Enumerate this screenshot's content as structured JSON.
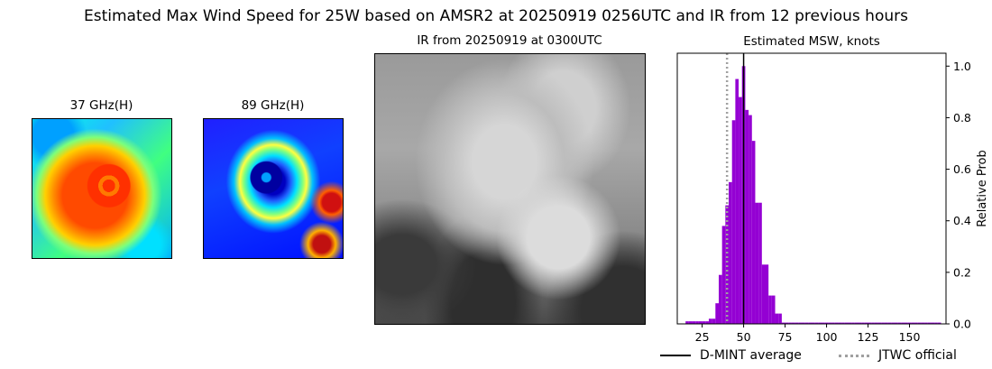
{
  "figure": {
    "suptitle": "Estimated Max Wind Speed for 25W based on AMSR2 at 20250919 0256UTC and IR from 12 previous hours"
  },
  "panels": {
    "p37": {
      "title": "37 GHz(H)"
    },
    "p89": {
      "title": "89 GHz(H)"
    },
    "ir": {
      "title": "IR from 20250919 at 0300UTC"
    }
  },
  "colors": {
    "bars": "#9400d3",
    "dmint_line": "#000000",
    "jtwc_line": "#a0a0a0",
    "microwave_low": "#0000ff",
    "microwave_high": "#ff4500"
  },
  "chart_data": {
    "type": "bar",
    "title": "Estimated MSW, knots",
    "xlabel": "",
    "ylabel": "Relative Prob",
    "xlim": [
      10,
      172
    ],
    "ylim": [
      0,
      1.05
    ],
    "xticks": [
      25,
      50,
      75,
      100,
      125,
      150
    ],
    "yticks": [
      0.0,
      0.2,
      0.4,
      0.6,
      0.8,
      1.0
    ],
    "y_axis_side": "right",
    "grid": false,
    "bin_width": 2,
    "bins": [
      {
        "x0": 15,
        "y": 0.01
      },
      {
        "x0": 17,
        "y": 0.01
      },
      {
        "x0": 19,
        "y": 0.01
      },
      {
        "x0": 21,
        "y": 0.01
      },
      {
        "x0": 23,
        "y": 0.01
      },
      {
        "x0": 25,
        "y": 0.01
      },
      {
        "x0": 27,
        "y": 0.01
      },
      {
        "x0": 29,
        "y": 0.02
      },
      {
        "x0": 31,
        "y": 0.02
      },
      {
        "x0": 33,
        "y": 0.08
      },
      {
        "x0": 35,
        "y": 0.19
      },
      {
        "x0": 37,
        "y": 0.38
      },
      {
        "x0": 39,
        "y": 0.46
      },
      {
        "x0": 41,
        "y": 0.55
      },
      {
        "x0": 43,
        "y": 0.79
      },
      {
        "x0": 45,
        "y": 0.95
      },
      {
        "x0": 47,
        "y": 0.88
      },
      {
        "x0": 49,
        "y": 1.0
      },
      {
        "x0": 51,
        "y": 0.83
      },
      {
        "x0": 53,
        "y": 0.81
      },
      {
        "x0": 55,
        "y": 0.71
      },
      {
        "x0": 57,
        "y": 0.47
      },
      {
        "x0": 59,
        "y": 0.47
      },
      {
        "x0": 61,
        "y": 0.23
      },
      {
        "x0": 63,
        "y": 0.23
      },
      {
        "x0": 65,
        "y": 0.11
      },
      {
        "x0": 67,
        "y": 0.11
      },
      {
        "x0": 69,
        "y": 0.04
      },
      {
        "x0": 71,
        "y": 0.04
      },
      {
        "x0": 73,
        "y": 0.005
      },
      {
        "x0": 75,
        "y": 0.005
      },
      {
        "x0": 77,
        "y": 0.005
      },
      {
        "x0": 79,
        "y": 0.005
      },
      {
        "x0": 81,
        "y": 0.005
      },
      {
        "x0": 83,
        "y": 0.005
      },
      {
        "x0": 85,
        "y": 0.005
      },
      {
        "x0": 87,
        "y": 0.005
      },
      {
        "x0": 89,
        "y": 0.005
      },
      {
        "x0": 91,
        "y": 0.005
      },
      {
        "x0": 93,
        "y": 0.005
      },
      {
        "x0": 95,
        "y": 0.005
      },
      {
        "x0": 97,
        "y": 0.005
      },
      {
        "x0": 99,
        "y": 0.005
      },
      {
        "x0": 101,
        "y": 0.005
      },
      {
        "x0": 103,
        "y": 0.005
      },
      {
        "x0": 105,
        "y": 0.005
      },
      {
        "x0": 107,
        "y": 0.005
      },
      {
        "x0": 109,
        "y": 0.005
      },
      {
        "x0": 111,
        "y": 0.005
      },
      {
        "x0": 113,
        "y": 0.005
      },
      {
        "x0": 115,
        "y": 0.005
      },
      {
        "x0": 117,
        "y": 0.005
      },
      {
        "x0": 119,
        "y": 0.005
      },
      {
        "x0": 121,
        "y": 0.005
      },
      {
        "x0": 123,
        "y": 0.005
      },
      {
        "x0": 125,
        "y": 0.005
      },
      {
        "x0": 127,
        "y": 0.005
      },
      {
        "x0": 129,
        "y": 0.005
      },
      {
        "x0": 131,
        "y": 0.005
      },
      {
        "x0": 133,
        "y": 0.005
      },
      {
        "x0": 135,
        "y": 0.005
      },
      {
        "x0": 137,
        "y": 0.005
      },
      {
        "x0": 139,
        "y": 0.005
      },
      {
        "x0": 141,
        "y": 0.005
      },
      {
        "x0": 143,
        "y": 0.005
      },
      {
        "x0": 145,
        "y": 0.005
      },
      {
        "x0": 147,
        "y": 0.005
      },
      {
        "x0": 149,
        "y": 0.005
      },
      {
        "x0": 151,
        "y": 0.005
      },
      {
        "x0": 153,
        "y": 0.005
      },
      {
        "x0": 155,
        "y": 0.005
      },
      {
        "x0": 157,
        "y": 0.005
      },
      {
        "x0": 159,
        "y": 0.005
      },
      {
        "x0": 161,
        "y": 0.005
      },
      {
        "x0": 163,
        "y": 0.005
      },
      {
        "x0": 165,
        "y": 0.005
      },
      {
        "x0": 167,
        "y": 0.005
      }
    ],
    "vlines": [
      {
        "name": "D-MINT average",
        "x": 50,
        "style": "solid"
      },
      {
        "name": "JTWC official",
        "x": 40,
        "style": "dotted"
      }
    ],
    "legend": {
      "placement": "bottom",
      "entries": [
        "D-MINT average",
        "JTWC official"
      ]
    }
  }
}
